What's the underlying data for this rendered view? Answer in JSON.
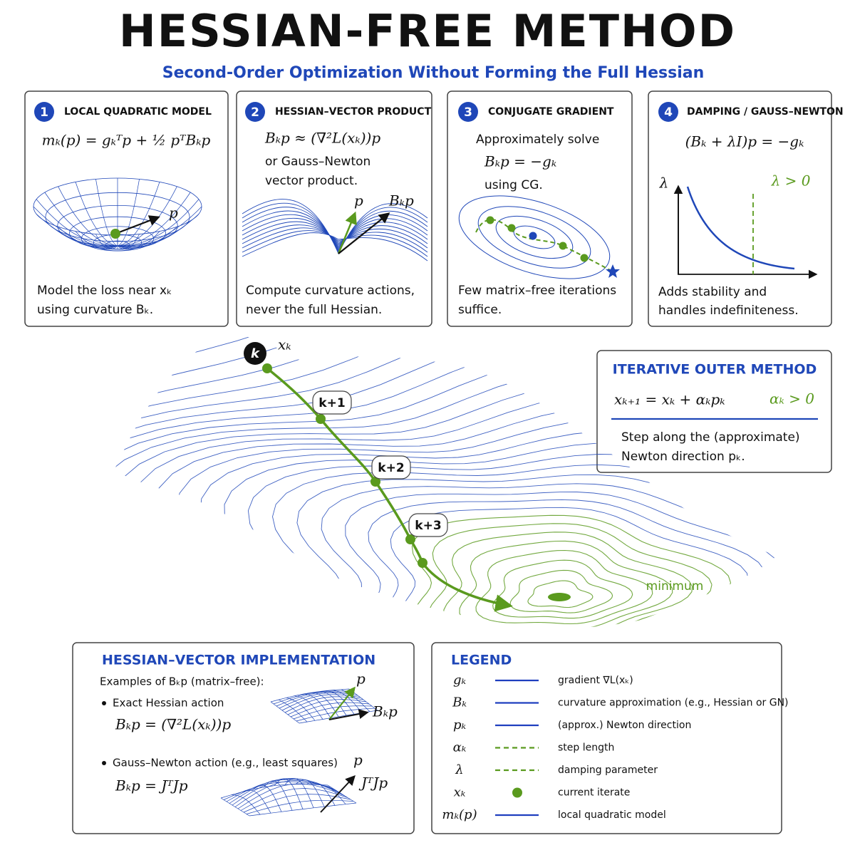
{
  "title": "HESSIAN-FREE METHOD",
  "subtitle": "Second-Order Optimization Without Forming the Full Hessian",
  "panels": [
    {
      "number": "1",
      "heading": "LOCAL QUADRATIC MODEL",
      "lines": [
        "mₖ(p) = gₖᵀp + ½ pᵀBₖp"
      ],
      "labels": [
        "p"
      ],
      "caption": [
        "Model the loss near xₖ",
        "using curvature Bₖ."
      ]
    },
    {
      "number": "2",
      "heading": "HESSIAN–VECTOR PRODUCT",
      "lines": [
        "Bₖp ≈ (∇²L(xₖ))p",
        "or Gauss–Newton",
        "vector product."
      ],
      "labels": [
        "p",
        "Bₖp"
      ],
      "caption": [
        "Compute curvature actions,",
        "never the full Hessian."
      ]
    },
    {
      "number": "3",
      "heading": "CONJUGATE GRADIENT",
      "lines": [
        "Approximately solve",
        "Bₖp = −gₖ",
        "using CG."
      ],
      "labels": [],
      "caption": [
        "Few matrix–free iterations",
        "suffice."
      ]
    },
    {
      "number": "4",
      "heading": "DAMPING / GAUSS–NEWTON",
      "lines": [
        "(Bₖ + λI)p = −gₖ"
      ],
      "labels": [
        "λ",
        "λ > 0"
      ],
      "caption": [
        "Adds stability and",
        "handles indefiniteness."
      ]
    }
  ],
  "landscape": {
    "iterates": [
      "k",
      "k+1",
      "k+2",
      "k+3"
    ],
    "point_label": "xₖ",
    "minimum_label": "minimum"
  },
  "outer_method": {
    "heading": "ITERATIVE OUTER METHOD",
    "formula": "xₖ₊₁ = xₖ + αₖpₖ",
    "condition": "αₖ > 0",
    "caption": [
      "Step along the (approximate)",
      "Newton direction pₖ."
    ]
  },
  "implementation": {
    "heading": "HESSIAN–VECTOR IMPLEMENTATION",
    "intro": "Examples of Bₖp (matrix–free):",
    "items": [
      {
        "name": "Exact Hessian action",
        "formula": "Bₖp = (∇²L(xₖ))p",
        "labels": [
          "p",
          "Bₖp"
        ]
      },
      {
        "name": "Gauss–Newton action (e.g., least squares)",
        "formula": "Bₖp = JᵀJp",
        "labels": [
          "p",
          "JᵀJp"
        ]
      }
    ]
  },
  "legend": {
    "title": "LEGEND",
    "items": [
      {
        "symbol": "gₖ",
        "description": "gradient ∇L(xₖ)",
        "line": "solid",
        "color": "#1f3fbf"
      },
      {
        "symbol": "Bₖ",
        "description": "curvature approximation (e.g., Hessian or GN)",
        "line": "solid",
        "color": "#1f3fbf"
      },
      {
        "symbol": "pₖ",
        "description": "(approx.) Newton direction",
        "line": "solid",
        "color": "#1f3fbf"
      },
      {
        "symbol": "αₖ",
        "description": "step length",
        "line": "dashed",
        "color": "#5a9a1e"
      },
      {
        "symbol": "λ",
        "description": "damping parameter",
        "line": "dashed",
        "color": "#5a9a1e"
      },
      {
        "symbol": "xₖ",
        "description": "current iterate",
        "line": "dot",
        "color": "#5a9a1e"
      },
      {
        "symbol": "mₖ(p)",
        "description": "local quadratic model",
        "line": "solid",
        "color": "#1f3fbf"
      }
    ]
  }
}
